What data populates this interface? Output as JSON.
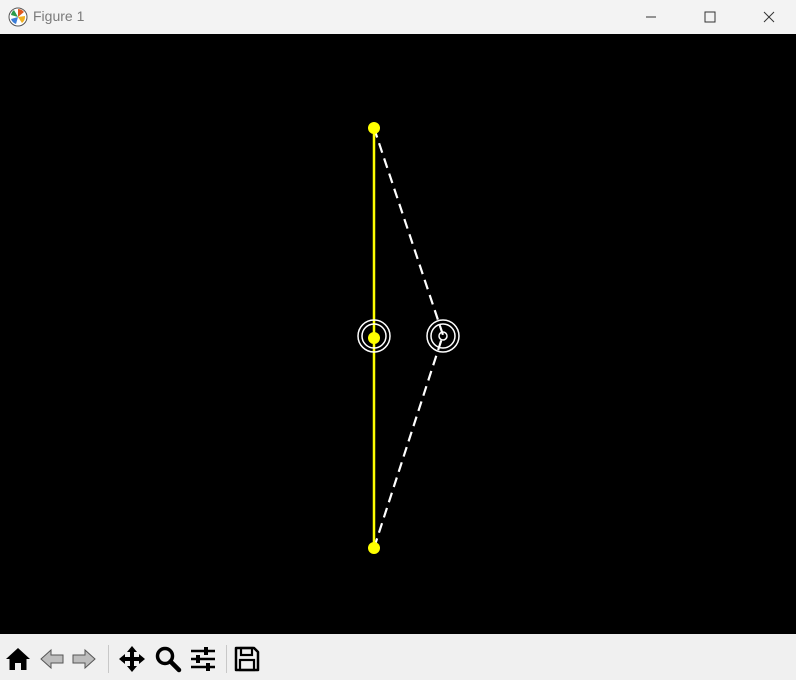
{
  "window": {
    "title": "Figure 1",
    "icons": {
      "app": "matplotlib-figure-icon",
      "minimize": "minimize-icon",
      "maximize": "maximize-icon",
      "close": "close-icon"
    }
  },
  "toolbar": {
    "buttons": [
      {
        "name": "home",
        "icon": "home-icon"
      },
      {
        "name": "back",
        "icon": "back-arrow-icon"
      },
      {
        "name": "forward",
        "icon": "forward-arrow-icon"
      },
      {
        "name": "pan",
        "icon": "pan-move-icon"
      },
      {
        "name": "zoom",
        "icon": "zoom-magnifier-icon"
      },
      {
        "name": "configure-subplots",
        "icon": "sliders-icon"
      },
      {
        "name": "save",
        "icon": "save-floppy-icon"
      }
    ]
  },
  "plot": {
    "background_color": "#000000",
    "solid_line_color": "#ffff00",
    "dashed_line_color": "#ffffff",
    "marker_color": "#ffff00",
    "ring_color": "#ffffff"
  }
}
